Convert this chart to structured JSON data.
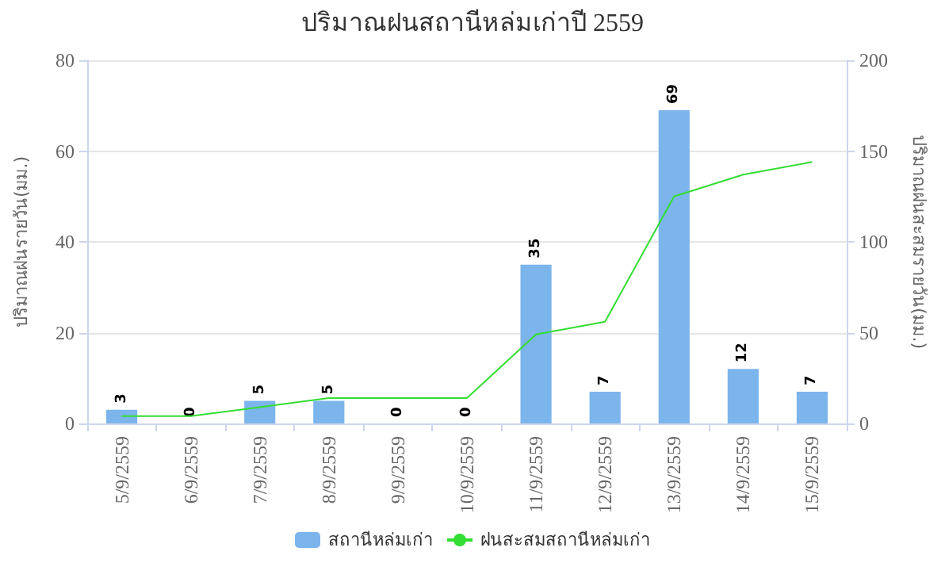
{
  "chart_data": {
    "type": "bar",
    "title": "ปริมาณฝนสถานีหล่มเก่าปี 2559",
    "ylabel": "ปริมาณฝนรายวัน(มม.)",
    "y2label": "ปริมาณฝนสะสมรายวัน(มม.)",
    "categories": [
      "5/9/2559",
      "6/9/2559",
      "7/9/2559",
      "8/9/2559",
      "9/9/2559",
      "10/9/2559",
      "11/9/2559",
      "12/9/2559",
      "13/9/2559",
      "14/9/2559",
      "15/9/2559"
    ],
    "series": [
      {
        "name": "สถานีหล่มเก่า",
        "color": "#7cb5ec",
        "values": [
          3,
          0,
          5,
          5,
          0,
          0,
          35,
          7,
          69,
          12,
          7
        ],
        "value_labels": [
          "3",
          "0",
          "5",
          "5",
          "0",
          "0",
          "35",
          "7",
          "69",
          "12",
          "7"
        ]
      },
      {
        "name": "ฝนสะสมสถานีหล่มเก่า",
        "type": "line",
        "axis": "y2",
        "color": "#33dd33",
        "values": [
          4,
          4,
          9,
          14,
          14,
          14,
          49,
          56,
          125,
          137,
          144
        ]
      }
    ],
    "ylim": [
      0,
      80
    ],
    "yticks": [
      0,
      20,
      40,
      60,
      80
    ],
    "y2lim": [
      0,
      200
    ],
    "y2ticks": [
      0,
      50,
      100,
      150,
      200
    ],
    "grid": "y",
    "legend": "bottom",
    "marker": "none",
    "line_style": "solid"
  }
}
